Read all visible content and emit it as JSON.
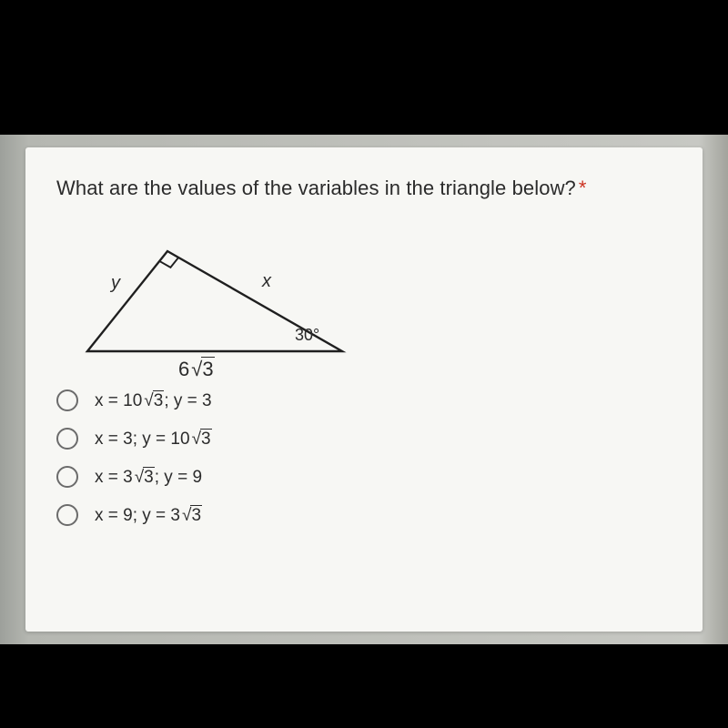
{
  "question": {
    "text": "What are the values of the variables in the triangle below?",
    "required_marker": "*"
  },
  "triangle": {
    "label_y": "y",
    "label_x": "x",
    "angle_label": "30°",
    "base_coeff": "6",
    "base_radicand": "3",
    "stroke": "#1f1f1f",
    "stroke_width": 2.4,
    "vertices": {
      "A": [
        20,
        138
      ],
      "B": [
        108,
        28
      ],
      "C": [
        300,
        138
      ]
    },
    "right_angle_square_size": 14
  },
  "options": [
    {
      "x": "10√3",
      "y": "3"
    },
    {
      "x": "3",
      "y": "10√3"
    },
    {
      "x": "3√3",
      "y": "9"
    },
    {
      "x": "9",
      "y": "3√3"
    }
  ],
  "colors": {
    "page_bg": "#000000",
    "paper_bg": "#f7f7f4",
    "text": "#2b2b2b",
    "radio_border": "#6b6b6b",
    "asterisk": "#cc3322"
  }
}
